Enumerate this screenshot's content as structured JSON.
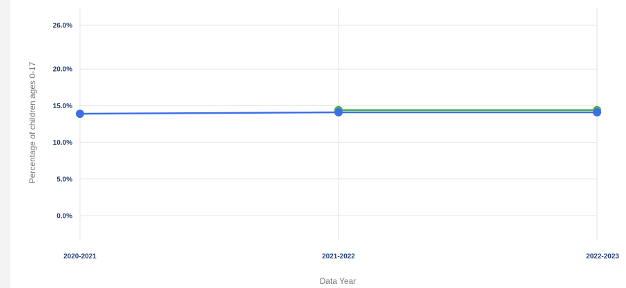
{
  "chart_data": {
    "type": "line",
    "title": "",
    "xlabel": "Data Year",
    "ylabel": "Percentage of children ages 0-17",
    "categories": [
      "2020-2021",
      "2021-2022",
      "2022-2023"
    ],
    "y_ticks": [
      "0.0%",
      "5.0%",
      "10.0%",
      "15.0%",
      "20.0%",
      "26.0%"
    ],
    "y_tick_values": [
      0,
      5,
      10,
      15,
      20,
      26
    ],
    "ylim": [
      -3,
      28
    ],
    "grid": true,
    "legend": "none",
    "series": [
      {
        "color": "#4caf50",
        "values": [
          null,
          14.4,
          14.4
        ]
      },
      {
        "color": "#3b6ee8",
        "values": [
          13.9,
          14.1,
          14.1
        ]
      }
    ]
  }
}
